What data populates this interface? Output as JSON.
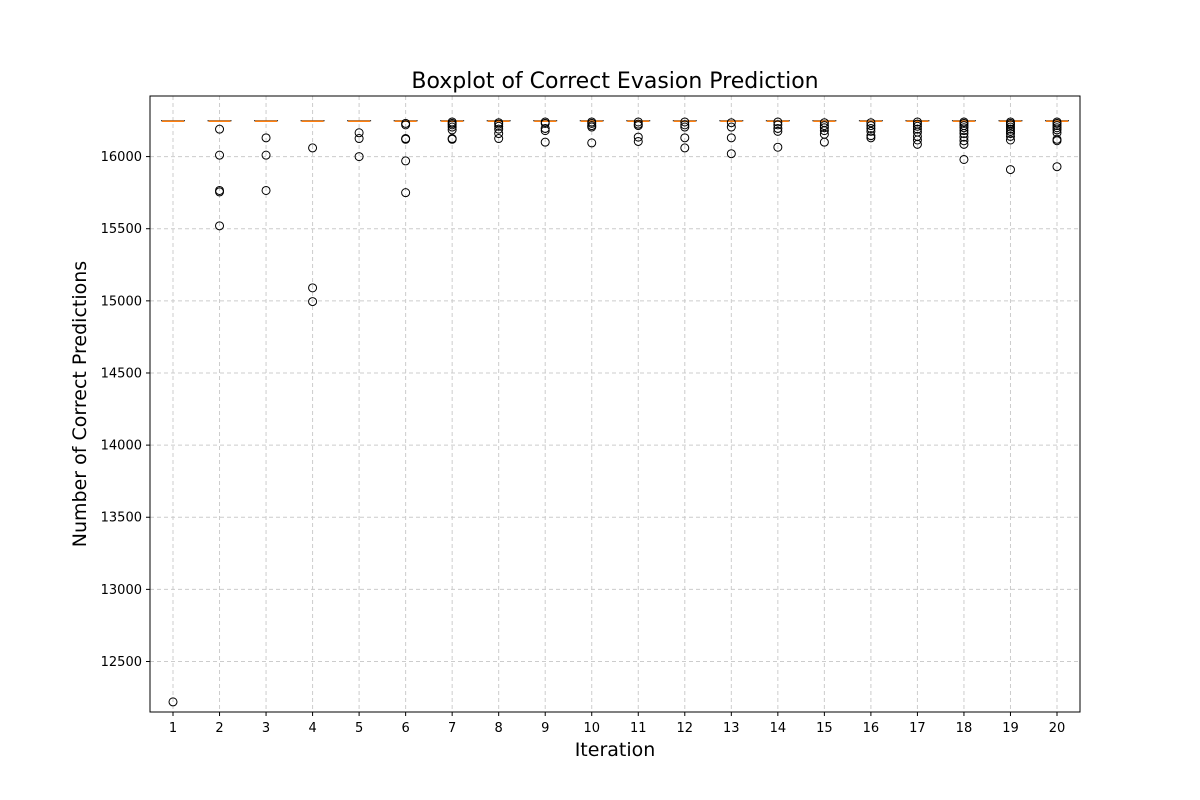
{
  "chart_data": {
    "type": "boxplot",
    "title": "Boxplot of Correct Evasion Prediction",
    "xlabel": "Iteration",
    "ylabel": "Number of Correct Predictions",
    "ylim": [
      12150,
      16420
    ],
    "yticks": [
      12500,
      13000,
      13500,
      14000,
      14500,
      15000,
      15500,
      16000
    ],
    "grid": true,
    "median_color": "#ff7f0e",
    "box_color": "#000000",
    "categories": [
      "1",
      "2",
      "3",
      "4",
      "5",
      "6",
      "7",
      "8",
      "9",
      "10",
      "11",
      "12",
      "13",
      "14",
      "15",
      "16",
      "17",
      "18",
      "19",
      "20"
    ],
    "boxes": [
      {
        "median": 16245,
        "outliers": [
          12220
        ]
      },
      {
        "median": 16245,
        "outliers": [
          16190,
          16010,
          15765,
          15755,
          15520
        ]
      },
      {
        "median": 16245,
        "outliers": [
          16130,
          16010,
          15765
        ]
      },
      {
        "median": 16245,
        "outliers": [
          16060,
          15090,
          14995
        ]
      },
      {
        "median": 16245,
        "outliers": [
          16165,
          16125,
          16000
        ]
      },
      {
        "median": 16245,
        "outliers": [
          16230,
          16220,
          16125,
          16120,
          15970,
          15750
        ]
      },
      {
        "median": 16245,
        "outliers": [
          16240,
          16230,
          16220,
          16205,
          16185,
          16125,
          16120
        ]
      },
      {
        "median": 16245,
        "outliers": [
          16235,
          16225,
          16210,
          16190,
          16160,
          16125
        ]
      },
      {
        "median": 16245,
        "outliers": [
          16240,
          16230,
          16195,
          16180,
          16100
        ]
      },
      {
        "median": 16245,
        "outliers": [
          16240,
          16230,
          16215,
          16205,
          16095
        ]
      },
      {
        "median": 16245,
        "outliers": [
          16240,
          16225,
          16215,
          16135,
          16105
        ]
      },
      {
        "median": 16245,
        "outliers": [
          16240,
          16220,
          16205,
          16130,
          16060
        ]
      },
      {
        "median": 16245,
        "outliers": [
          16235,
          16205,
          16130,
          16020
        ]
      },
      {
        "median": 16245,
        "outliers": [
          16240,
          16220,
          16195,
          16175,
          16065
        ]
      },
      {
        "median": 16245,
        "outliers": [
          16235,
          16215,
          16200,
          16180,
          16155,
          16100
        ]
      },
      {
        "median": 16245,
        "outliers": [
          16235,
          16215,
          16195,
          16175,
          16145,
          16130
        ]
      },
      {
        "median": 16245,
        "outliers": [
          16240,
          16225,
          16210,
          16190,
          16170,
          16140,
          16115,
          16085
        ]
      },
      {
        "median": 16245,
        "outliers": [
          16240,
          16230,
          16215,
          16200,
          16180,
          16160,
          16135,
          16110,
          16085,
          15980
        ]
      },
      {
        "median": 16245,
        "outliers": [
          16240,
          16230,
          16220,
          16205,
          16190,
          16175,
          16160,
          16140,
          16115,
          15910
        ]
      },
      {
        "median": 16245,
        "outliers": [
          16240,
          16230,
          16215,
          16200,
          16185,
          16165,
          16120,
          16110,
          15930
        ]
      }
    ]
  }
}
